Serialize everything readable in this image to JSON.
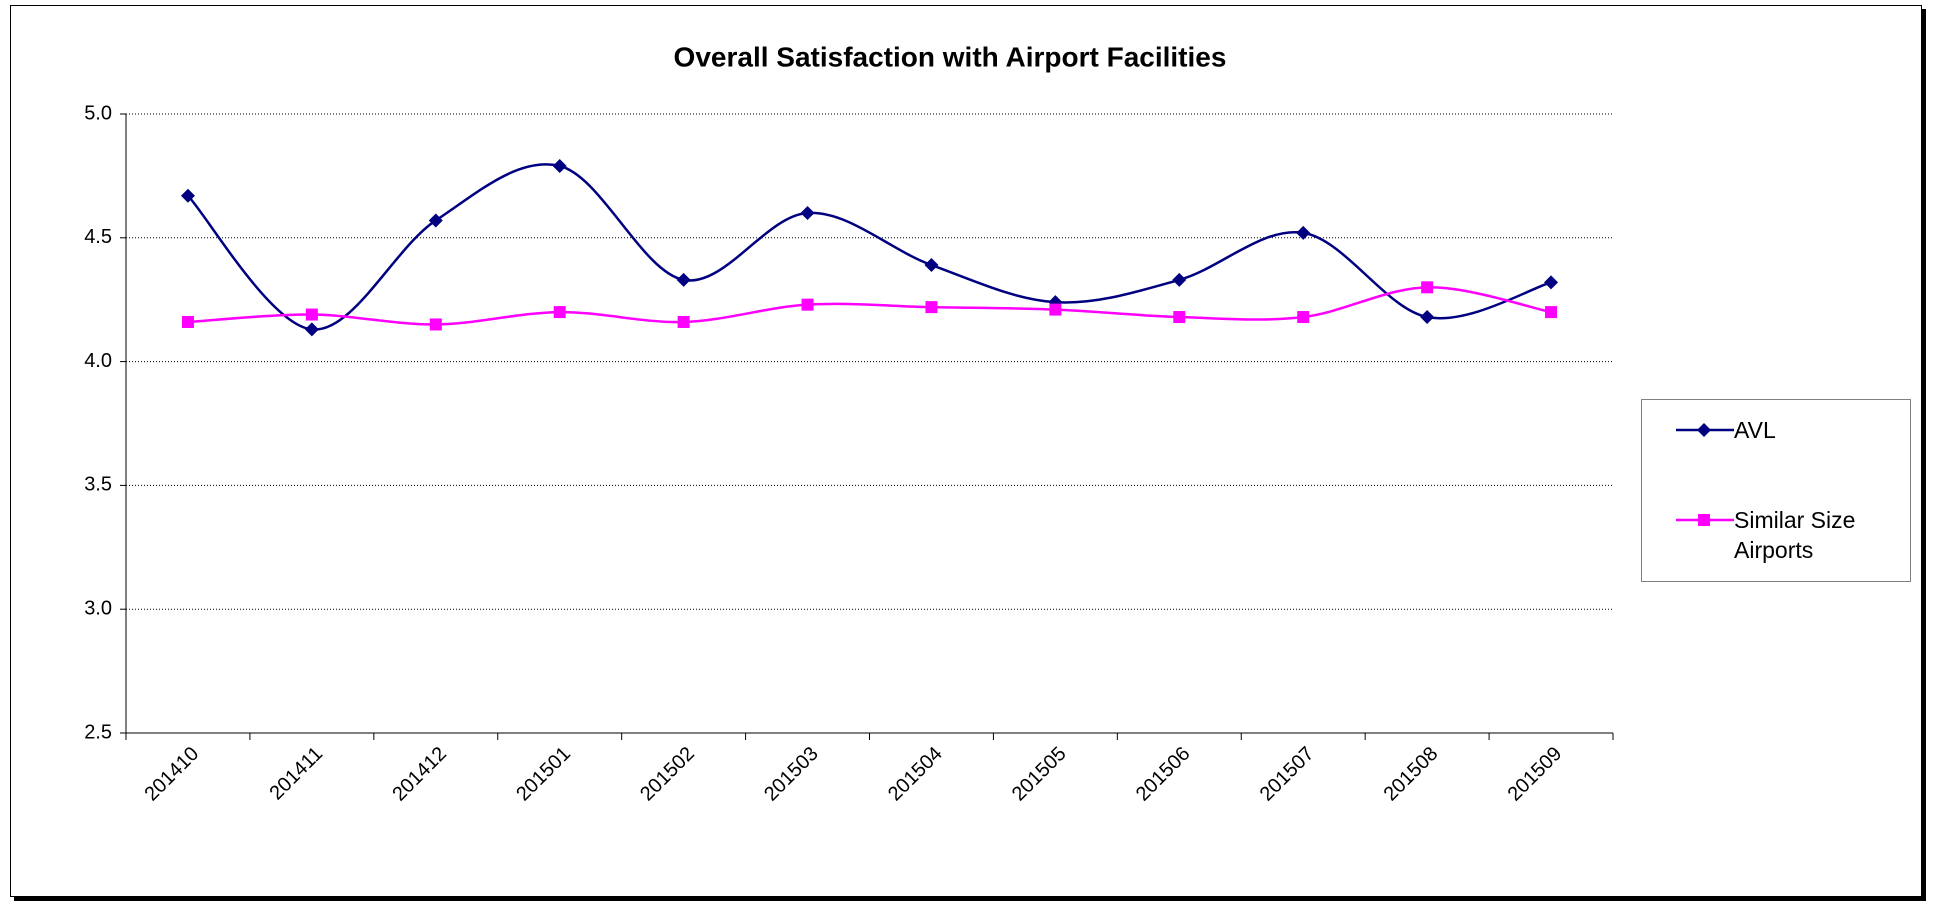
{
  "chart_data": {
    "type": "line",
    "title": "Overall Satisfaction with Airport Facilities",
    "categories": [
      "201410",
      "201411",
      "201412",
      "201501",
      "201502",
      "201503",
      "201504",
      "201505",
      "201506",
      "201507",
      "201508",
      "201509"
    ],
    "series": [
      {
        "name": "AVL",
        "color": "#000080",
        "marker": "diamond",
        "values": [
          4.67,
          4.13,
          4.57,
          4.79,
          4.33,
          4.6,
          4.39,
          4.24,
          4.33,
          4.52,
          4.18,
          4.32
        ]
      },
      {
        "name": "Similar Size Airports",
        "color": "#ff00ff",
        "marker": "square",
        "values": [
          4.16,
          4.19,
          4.15,
          4.2,
          4.16,
          4.23,
          4.22,
          4.21,
          4.18,
          4.18,
          4.3,
          4.2
        ]
      }
    ],
    "ylim": [
      2.5,
      5.0
    ],
    "yticks": [
      {
        "value": 2.5,
        "label": "2.5"
      },
      {
        "value": 3.0,
        "label": "3.0"
      },
      {
        "value": 3.5,
        "label": "3.5"
      },
      {
        "value": 4.0,
        "label": "4.0"
      },
      {
        "value": 4.5,
        "label": "4.5"
      },
      {
        "value": 5.0,
        "label": "5.0"
      }
    ],
    "grid": true,
    "smooth": true,
    "legend": "right"
  }
}
